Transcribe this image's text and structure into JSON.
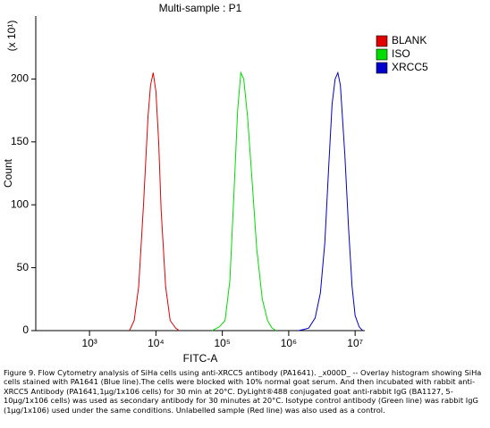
{
  "chart_data": {
    "type": "line",
    "title": "Multi-sample : P1",
    "y_multiplier": "(x 10¹)",
    "xlabel": "FITC-A",
    "ylabel": "Count",
    "xscale": "log",
    "xlim": [
      155,
      14000000
    ],
    "xticks": [
      {
        "value": 1000,
        "label": "10³"
      },
      {
        "value": 10000,
        "label": "10⁴"
      },
      {
        "value": 100000,
        "label": "10⁵"
      },
      {
        "value": 1000000,
        "label": "10⁶"
      },
      {
        "value": 10000000,
        "label": "10⁷"
      }
    ],
    "ylim": [
      0,
      250
    ],
    "yticks": [
      0,
      50,
      100,
      150,
      200
    ],
    "legend": "upper right",
    "series": [
      {
        "name": "BLANK",
        "color": "#e00000",
        "x": [
          4000,
          4700,
          5500,
          6500,
          7600,
          8300,
          9100,
          10000,
          11000,
          12000,
          14000,
          16400,
          19800,
          22400
        ],
        "values": [
          0,
          8,
          35,
          100,
          170,
          195,
          205,
          190,
          150,
          95,
          35,
          8,
          2,
          0
        ]
      },
      {
        "name": "ISO",
        "color": "#00dd00",
        "x": [
          70000,
          90000,
          110000,
          130000,
          150000,
          170000,
          190000,
          210000,
          240000,
          280000,
          330000,
          400000,
          480000,
          560000,
          650000
        ],
        "values": [
          0,
          3,
          8,
          40,
          110,
          175,
          205,
          200,
          170,
          120,
          65,
          25,
          8,
          2,
          0
        ]
      },
      {
        "name": "XRCC5",
        "color": "#0000cc",
        "x": [
          1400000,
          1700000,
          2000000,
          2500000,
          3000000,
          3500000,
          4000000,
          4500000,
          5000000,
          5500000,
          6000000,
          7000000,
          8000000,
          9000000,
          10000000,
          11500000,
          13000000
        ],
        "values": [
          0,
          1,
          2,
          10,
          30,
          70,
          130,
          180,
          200,
          205,
          195,
          140,
          80,
          35,
          12,
          3,
          0
        ]
      }
    ],
    "caption": "Figure 9. Flow Cytometry analysis of SiHa cells using anti-XRCC5 antibody (PA1641). _x000D_ -- Overlay histogram showing SiHa cells stained with PA1641 (Blue line).The cells were blocked with 10% normal goat serum. And then incubated with rabbit anti-XRCC5 Antibody (PA1641,1μg/1x106 cells) for 30 min at 20°C. DyLight®488 conjugated goat anti-rabbit IgG (BA1127, 5-10μg/1x106 cells) was used as secondary antibody for 30 minutes at 20°C. Isotype control antibody (Green line) was rabbit IgG (1μg/1x106) used under the same conditions. Unlabelled sample (Red line) was also used as a control."
  }
}
